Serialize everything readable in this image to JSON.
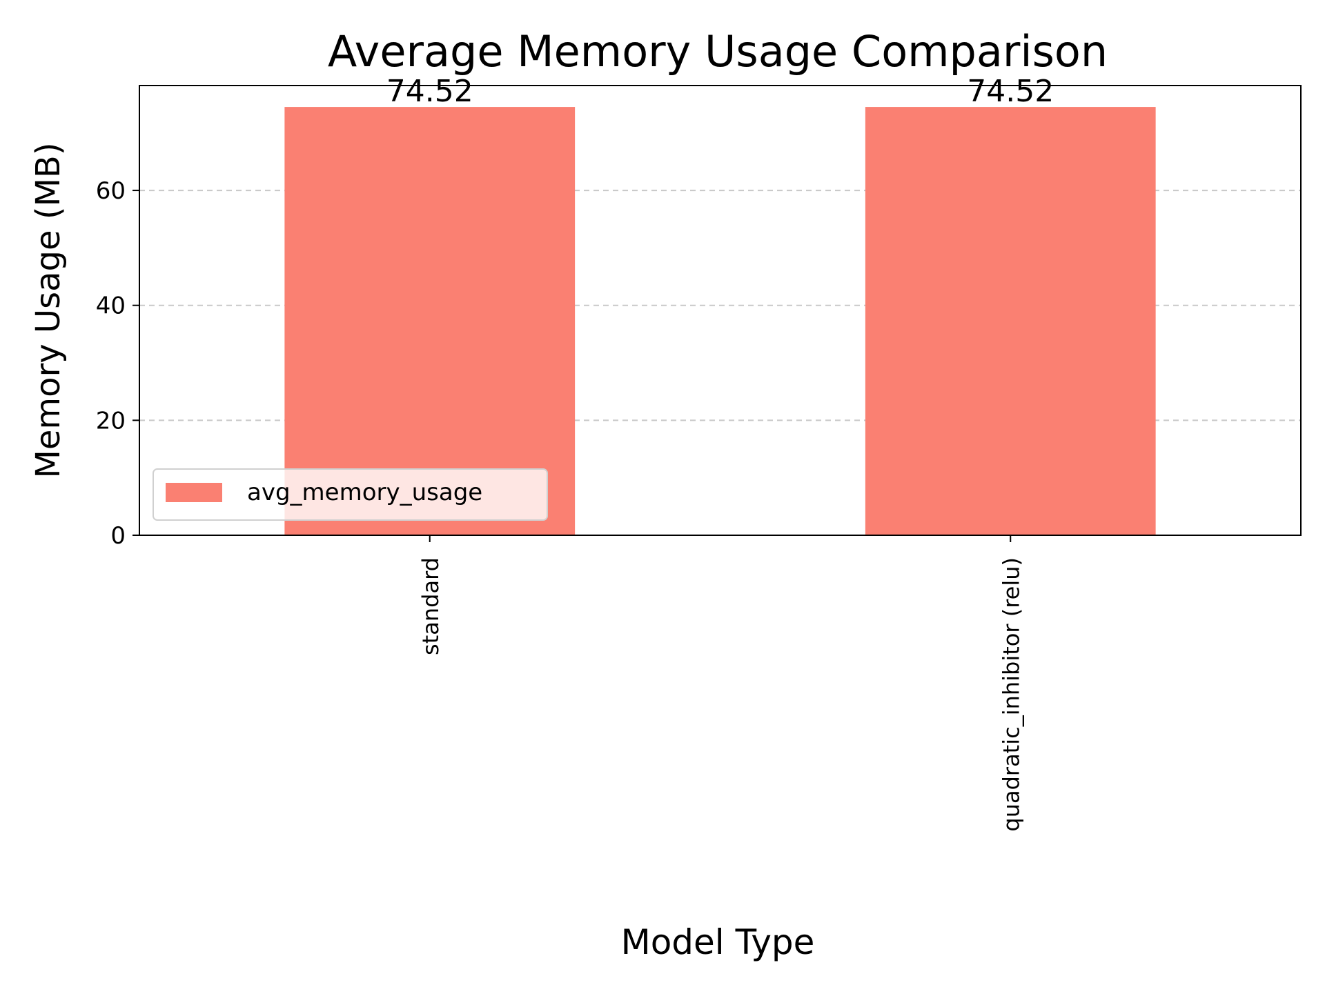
{
  "chart_data": {
    "type": "bar",
    "title": "Average Memory Usage Comparison",
    "xlabel": "Model Type",
    "ylabel": "Memory Usage (MB)",
    "categories": [
      "standard",
      "quadratic_inhibitor (relu)"
    ],
    "series": [
      {
        "name": "avg_memory_usage",
        "values": [
          74.52,
          74.52
        ],
        "value_labels": [
          "74.52",
          "74.52"
        ],
        "color": "#fa8072"
      }
    ],
    "ylim": [
      0,
      78.25
    ],
    "yticks": [
      0,
      20,
      40,
      60
    ],
    "ytick_labels": [
      "0",
      "20",
      "40",
      "60"
    ],
    "grid": "y-dashed",
    "legend": "lower-left",
    "colors": {
      "bar": "#fa8072",
      "grid": "#c8c8c8",
      "axis": "#000000"
    }
  }
}
